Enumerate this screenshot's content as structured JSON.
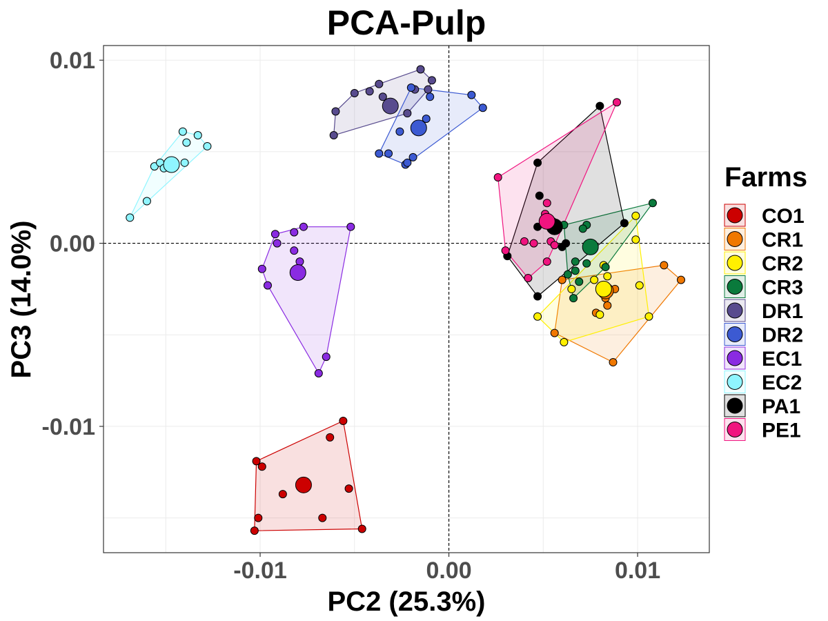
{
  "chart_data": {
    "type": "scatter",
    "title": "PCA-Pulp",
    "xlabel": "PC2 (25.3%)",
    "ylabel": "PC3 (14.0%)",
    "xlim": [
      -0.0183,
      0.0138
    ],
    "ylim": [
      -0.0169,
      0.0108
    ],
    "x_ticks": [
      {
        "value": -0.01,
        "label": "-0.01"
      },
      {
        "value": 0.0,
        "label": "0.00"
      },
      {
        "value": 0.01,
        "label": "0.01"
      }
    ],
    "y_ticks": [
      {
        "value": 0.01,
        "label": "0.01"
      },
      {
        "value": 0.0,
        "label": "0.00"
      },
      {
        "value": -0.01,
        "label": "-0.01"
      }
    ],
    "grid": true,
    "reference_lines": {
      "x": 0.0,
      "y": 0.0,
      "style": "dashed"
    },
    "hull_fill_opacity": 0.12,
    "legend": {
      "title": "Farms",
      "position": "right"
    },
    "series": [
      {
        "name": "CO1",
        "color": "#CC0000",
        "centroid": [
          -0.0077,
          -0.0132
        ],
        "points": [
          [
            -0.0102,
            -0.0119
          ],
          [
            -0.0099,
            -0.0122
          ],
          [
            -0.0088,
            -0.0137
          ],
          [
            -0.0056,
            -0.0097
          ],
          [
            -0.0063,
            -0.0106
          ],
          [
            -0.0053,
            -0.0134
          ],
          [
            -0.0101,
            -0.015
          ],
          [
            -0.0067,
            -0.015
          ],
          [
            -0.0103,
            -0.0157
          ],
          [
            -0.0046,
            -0.0156
          ]
        ]
      },
      {
        "name": "CR1",
        "color": "#F07800",
        "centroid": [
          0.0083,
          -0.0026
        ],
        "points": [
          [
            0.0114,
            -0.0012
          ],
          [
            0.0123,
            -0.002
          ],
          [
            0.0083,
            -0.003
          ],
          [
            0.0084,
            -0.0034
          ],
          [
            0.0078,
            -0.0038
          ],
          [
            0.0056,
            -0.0049
          ],
          [
            0.0087,
            -0.0065
          ],
          [
            0.006,
            -0.002
          ],
          [
            0.0088,
            -0.0025
          ]
        ]
      },
      {
        "name": "CR2",
        "color": "#FFF000",
        "centroid": [
          0.0082,
          -0.0025
        ],
        "points": [
          [
            0.0099,
            0.0015
          ],
          [
            0.0099,
            0.0002
          ],
          [
            0.0084,
            -0.0018
          ],
          [
            0.0101,
            -0.0023
          ],
          [
            0.0106,
            -0.004
          ],
          [
            0.0047,
            -0.004
          ],
          [
            0.0061,
            -0.0054
          ],
          [
            0.008,
            -0.0039
          ],
          [
            0.0065,
            -0.0025
          ],
          [
            0.0077,
            -0.002
          ],
          [
            0.0082,
            -0.0012
          ]
        ]
      },
      {
        "name": "CR3",
        "color": "#0A7A3C",
        "centroid": [
          0.0075,
          -0.0002
        ],
        "points": [
          [
            0.0108,
            0.0022
          ],
          [
            0.0073,
            0.001
          ],
          [
            0.0071,
            0.0008
          ],
          [
            0.0061,
            0.001
          ],
          [
            0.0067,
            -0.001
          ],
          [
            0.0073,
            -0.0011
          ],
          [
            0.0067,
            -0.0015
          ],
          [
            0.0063,
            -0.0017
          ],
          [
            0.0069,
            -0.0021
          ],
          [
            0.0066,
            -0.003
          ],
          [
            0.0083,
            -0.0013
          ]
        ]
      },
      {
        "name": "DR1",
        "color": "#584B8E",
        "centroid": [
          -0.0031,
          0.0075
        ],
        "points": [
          [
            -0.0015,
            0.0095
          ],
          [
            -0.0009,
            0.0089
          ],
          [
            -0.0011,
            0.0084
          ],
          [
            -0.0037,
            0.0087
          ],
          [
            -0.0042,
            0.0083
          ],
          [
            -0.005,
            0.0082
          ],
          [
            -0.006,
            0.0072
          ],
          [
            -0.0061,
            0.0059
          ],
          [
            -0.0018,
            0.0084
          ],
          [
            -0.0035,
            0.008
          ],
          [
            -0.0022,
            0.0071
          ]
        ]
      },
      {
        "name": "DR2",
        "color": "#3C5AD2",
        "centroid": [
          -0.0016,
          0.0063
        ],
        "points": [
          [
            0.0012,
            0.0081
          ],
          [
            0.0018,
            0.0074
          ],
          [
            -0.001,
            0.008
          ],
          [
            -0.0037,
            0.0049
          ],
          [
            -0.0032,
            0.0049
          ],
          [
            -0.0023,
            0.0043
          ],
          [
            -0.0022,
            0.0044
          ],
          [
            -0.0019,
            0.0047
          ],
          [
            -0.0026,
            0.0061
          ],
          [
            -0.0012,
            0.0068
          ],
          [
            -0.002,
            0.0085
          ]
        ]
      },
      {
        "name": "EC1",
        "color": "#8A2BE2",
        "centroid": [
          -0.008,
          -0.0016
        ],
        "points": [
          [
            -0.0092,
            0.0005
          ],
          [
            -0.0077,
            0.0009
          ],
          [
            -0.0052,
            0.0009
          ],
          [
            -0.0091,
            0.0
          ],
          [
            -0.0082,
            0.0006
          ],
          [
            -0.0079,
            -0.001
          ],
          [
            -0.0099,
            -0.0014
          ],
          [
            -0.0096,
            -0.0023
          ],
          [
            -0.0065,
            -0.0062
          ],
          [
            -0.0069,
            -0.0071
          ],
          [
            -0.0082,
            -0.0004
          ]
        ]
      },
      {
        "name": "EC2",
        "color": "#8FF5FF",
        "centroid": [
          -0.0147,
          0.0043
        ],
        "points": [
          [
            -0.0141,
            0.0061
          ],
          [
            -0.0133,
            0.0059
          ],
          [
            -0.0128,
            0.0053
          ],
          [
            -0.0139,
            0.0055
          ],
          [
            -0.014,
            0.0044
          ],
          [
            -0.0156,
            0.0042
          ],
          [
            -0.0153,
            0.0044
          ],
          [
            -0.016,
            0.0023
          ],
          [
            -0.0169,
            0.0014
          ],
          [
            -0.0151,
            0.0041
          ]
        ]
      },
      {
        "name": "PA1",
        "color": "#000000",
        "centroid": [
          0.0056,
          0.0009
        ],
        "points": [
          [
            0.008,
            0.0075
          ],
          [
            0.0047,
            0.0044
          ],
          [
            0.0048,
            0.0026
          ],
          [
            0.0093,
            0.0011
          ],
          [
            0.0047,
            0.0009
          ],
          [
            0.0062,
            0.0
          ],
          [
            0.006,
            -0.0002
          ],
          [
            0.0031,
            -0.0007
          ],
          [
            0.0047,
            -0.0029
          ],
          [
            0.0055,
            0.0012
          ]
        ]
      },
      {
        "name": "PE1",
        "color": "#F0147F",
        "centroid": [
          0.0052,
          0.0012
        ],
        "points": [
          [
            0.0089,
            0.0077
          ],
          [
            0.0026,
            0.0036
          ],
          [
            0.0052,
            0.0022
          ],
          [
            0.0051,
            0.0016
          ],
          [
            0.0054,
            0.0001
          ],
          [
            0.0045,
            0.0
          ],
          [
            0.0056,
            -0.0001
          ],
          [
            0.003,
            -0.0004
          ],
          [
            0.0052,
            -0.001
          ],
          [
            0.0042,
            -0.0019
          ],
          [
            0.004,
            0.0001
          ]
        ]
      }
    ]
  }
}
